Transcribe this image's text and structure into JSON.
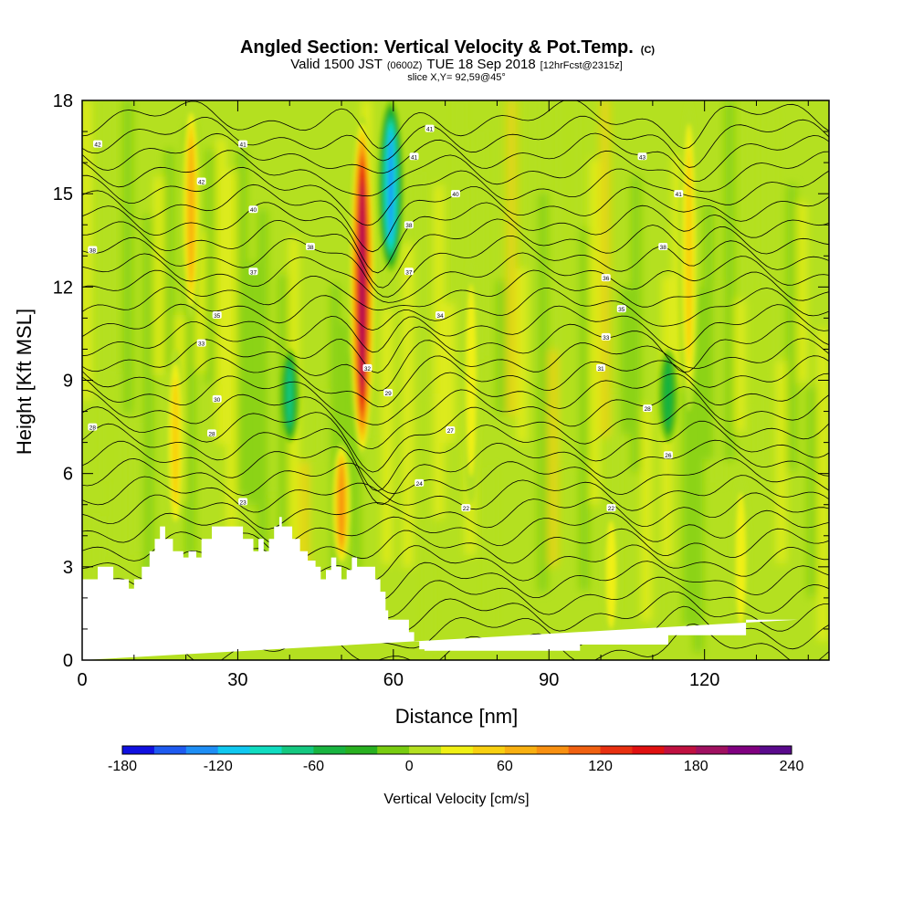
{
  "header": {
    "title_main": "Angled Section: Vertical Velocity & Pot.Temp.",
    "title_unit": "(C)",
    "valid_prefix": "Valid 1500 JST",
    "valid_utc": "(0600Z)",
    "valid_date": "TUE 18 Sep 2018",
    "valid_fcst": "[12hrFcst@2315z]",
    "slice": "slice X,Y= 92,59@45°"
  },
  "chart_data": {
    "type": "heatmap",
    "xlabel": "Distance [nm]",
    "ylabel": "Height [Kft MSL]",
    "xlim": [
      0,
      144
    ],
    "ylim": [
      0,
      18
    ],
    "x_ticks": [
      0,
      30,
      60,
      90,
      120
    ],
    "y_ticks": [
      0,
      3,
      6,
      9,
      12,
      15,
      18
    ],
    "colorbar": {
      "label": "Vertical Velocity [cm/s]",
      "min": -180,
      "max": 240,
      "step": 20,
      "tick_values": [
        -180,
        -120,
        -60,
        0,
        60,
        120,
        180,
        240
      ],
      "colors": [
        "#1010e0",
        "#1e5af0",
        "#1e8ef5",
        "#10c8f0",
        "#10dcc0",
        "#14c880",
        "#18b440",
        "#28b020",
        "#78cc10",
        "#b4e020",
        "#f0f014",
        "#f8d010",
        "#f8b010",
        "#f89010",
        "#f06010",
        "#e83010",
        "#e01010",
        "#c01040",
        "#a01060",
        "#800080",
        "#5a0a8c"
      ]
    },
    "velocity_features": [
      {
        "x": 54,
        "y_bottom": 6.5,
        "y_top": 17.5,
        "peak": 190,
        "label": "main updraft"
      },
      {
        "x": 59.5,
        "y_bottom": 12.5,
        "y_top": 18,
        "peak": -140,
        "label": "downdraft core"
      },
      {
        "x": 50,
        "y_bottom": 3,
        "y_top": 7,
        "peak": 100
      },
      {
        "x": 21,
        "y_bottom": 11,
        "y_top": 18,
        "peak": 70
      },
      {
        "x": 18,
        "y_bottom": 4,
        "y_top": 10,
        "peak": 50
      },
      {
        "x": 40,
        "y_bottom": 7,
        "y_top": 10,
        "peak": -70
      },
      {
        "x": 117,
        "y_bottom": 8,
        "y_top": 18,
        "peak": 50
      },
      {
        "x": 113,
        "y_bottom": 7,
        "y_top": 10,
        "peak": -60
      },
      {
        "x": 127,
        "y_bottom": 0.5,
        "y_top": 6,
        "peak": 40
      },
      {
        "x": 102,
        "y_bottom": 0.5,
        "y_top": 5,
        "peak": 40
      },
      {
        "x": 75,
        "y_bottom": 5,
        "y_top": 13,
        "peak": 30
      }
    ],
    "terrain": {
      "x": [
        0,
        3,
        3,
        6,
        6,
        9,
        9,
        10,
        10,
        11.5,
        11.5,
        13,
        13,
        14,
        14,
        15,
        15,
        16,
        16,
        17.5,
        17.5,
        19.5,
        19.5,
        20.5,
        20.5,
        22,
        22,
        23,
        23,
        25,
        25,
        31,
        31,
        33,
        33,
        34,
        34,
        35,
        35,
        36,
        36,
        37,
        37,
        38,
        38,
        38.5,
        38.5,
        40.5,
        40.5,
        42,
        42,
        43.5,
        43.5,
        45,
        45,
        46,
        46,
        47,
        47,
        48,
        48,
        49,
        49,
        50,
        50,
        51,
        51,
        52,
        52,
        53,
        53,
        56.5,
        56.5,
        57.5,
        57.5,
        58.5,
        58.5,
        59,
        59,
        63,
        63,
        64,
        64,
        65,
        65,
        66,
        66,
        67,
        67,
        90,
        90,
        94,
        94,
        96,
        96,
        113,
        113,
        128,
        128,
        138,
        138,
        144
      ],
      "y": [
        2.6,
        2.6,
        3.0,
        3.0,
        2.6,
        2.6,
        2.3,
        2.3,
        2.6,
        2.6,
        3.0,
        3.0,
        3.5,
        3.5,
        3.9,
        3.9,
        4.3,
        4.3,
        3.9,
        3.9,
        3.5,
        3.5,
        3.3,
        3.3,
        3.5,
        3.5,
        3.3,
        3.3,
        3.9,
        3.9,
        4.3,
        4.3,
        3.9,
        3.9,
        3.5,
        3.5,
        3.9,
        3.9,
        3.5,
        3.5,
        3.9,
        3.9,
        4.3,
        4.3,
        4.6,
        4.6,
        4.3,
        4.3,
        3.9,
        3.9,
        3.5,
        3.5,
        3.2,
        3.2,
        3.0,
        3.0,
        2.6,
        2.6,
        2.9,
        2.9,
        3.3,
        3.3,
        3.0,
        3.0,
        2.6,
        2.6,
        2.9,
        2.9,
        3.3,
        3.3,
        3.0,
        3.0,
        2.6,
        2.6,
        2.2,
        2.2,
        1.6,
        1.6,
        1.3,
        1.3,
        0.9,
        0.9,
        0.6,
        0.6,
        0.35,
        0.35,
        0.3,
        0.3,
        0.3,
        0.3,
        0.3,
        0.3,
        0.3,
        0.3,
        0.5,
        0.5,
        0.8,
        0.8,
        1.3,
        1.3
      ]
    },
    "theta_contour_labels": [
      {
        "text": "42",
        "x": 3,
        "y": 16.6
      },
      {
        "text": "38",
        "x": 2,
        "y": 13.2
      },
      {
        "text": "28",
        "x": 2,
        "y": 7.5
      },
      {
        "text": "42",
        "x": 23,
        "y": 15.4
      },
      {
        "text": "41",
        "x": 31,
        "y": 16.6
      },
      {
        "text": "40",
        "x": 33,
        "y": 14.5
      },
      {
        "text": "37",
        "x": 33,
        "y": 12.5
      },
      {
        "text": "35",
        "x": 26,
        "y": 11.1
      },
      {
        "text": "33",
        "x": 23,
        "y": 10.2
      },
      {
        "text": "30",
        "x": 26,
        "y": 8.4
      },
      {
        "text": "28",
        "x": 25,
        "y": 7.3
      },
      {
        "text": "23",
        "x": 31,
        "y": 5.1
      },
      {
        "text": "38",
        "x": 44,
        "y": 13.3
      },
      {
        "text": "41",
        "x": 67,
        "y": 17.1
      },
      {
        "text": "41",
        "x": 64,
        "y": 16.2
      },
      {
        "text": "40",
        "x": 72,
        "y": 15.0
      },
      {
        "text": "38",
        "x": 63,
        "y": 14.0
      },
      {
        "text": "37",
        "x": 63,
        "y": 12.5
      },
      {
        "text": "34",
        "x": 69,
        "y": 11.1
      },
      {
        "text": "32",
        "x": 55,
        "y": 9.4
      },
      {
        "text": "29",
        "x": 59,
        "y": 8.6
      },
      {
        "text": "27",
        "x": 71,
        "y": 7.4
      },
      {
        "text": "24",
        "x": 65,
        "y": 5.7
      },
      {
        "text": "22",
        "x": 74,
        "y": 4.9
      },
      {
        "text": "43",
        "x": 108,
        "y": 16.2
      },
      {
        "text": "41",
        "x": 115,
        "y": 15.0
      },
      {
        "text": "38",
        "x": 112,
        "y": 13.3
      },
      {
        "text": "36",
        "x": 101,
        "y": 12.3
      },
      {
        "text": "35",
        "x": 104,
        "y": 11.3
      },
      {
        "text": "33",
        "x": 101,
        "y": 10.4
      },
      {
        "text": "31",
        "x": 100,
        "y": 9.4
      },
      {
        "text": "28",
        "x": 109,
        "y": 8.1
      },
      {
        "text": "26",
        "x": 113,
        "y": 6.6
      },
      {
        "text": "22",
        "x": 102,
        "y": 4.9
      }
    ]
  }
}
